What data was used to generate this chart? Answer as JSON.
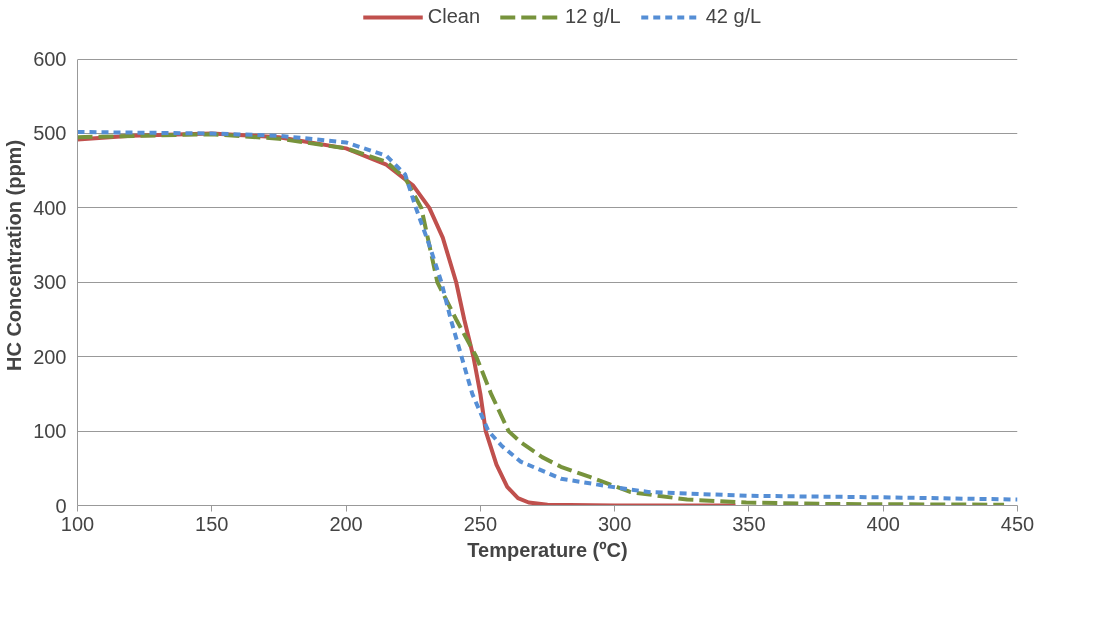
{
  "chart_data": {
    "type": "line",
    "xlabel": "Temperature (ºC)",
    "ylabel": "HC Concentration (ppm)",
    "xlim": [
      100,
      450
    ],
    "xticks": [
      100,
      150,
      200,
      250,
      300,
      350,
      400,
      450
    ],
    "ylim": [
      0,
      600
    ],
    "yticks": [
      0,
      100,
      200,
      300,
      400,
      500,
      600
    ],
    "grid": "y",
    "legend": "top",
    "marker": "none",
    "series": [
      {
        "name": "Clean",
        "color": "#c0504d",
        "line_style": "solid",
        "x": [
          100,
          120,
          150,
          175,
          200,
          215,
          225,
          231,
          236,
          241,
          244,
          247.4,
          250,
          252,
          256,
          260,
          264,
          268,
          275,
          300,
          345
        ],
        "values": [
          492,
          497,
          500,
          495,
          480,
          458,
          430,
          400,
          360,
          300,
          250,
          200,
          150,
          100,
          55,
          25,
          10,
          4,
          1,
          0,
          0
        ]
      },
      {
        "name": "12 g/L",
        "color": "#77933c",
        "line_style": "dashed",
        "x": [
          100,
          150,
          175,
          200,
          215,
          222,
          228,
          234,
          241,
          248.5,
          254,
          260.5,
          265,
          273,
          280,
          291,
          306,
          327,
          349,
          380,
          445
        ],
        "values": [
          495,
          499,
          493,
          480,
          462,
          440,
          400,
          300,
          250,
          200,
          150,
          100,
          85,
          65,
          52,
          38,
          18,
          8,
          4,
          2,
          1
        ]
      },
      {
        "name": "42 g/L",
        "color": "#558ed5",
        "line_style": "dotted",
        "x": [
          100,
          150,
          175,
          200,
          215,
          222,
          226,
          231,
          235.5,
          239,
          243,
          247,
          253,
          258,
          265,
          280,
          299,
          313,
          350,
          400,
          450
        ],
        "values": [
          502,
          500,
          497,
          488,
          470,
          445,
          400,
          350,
          300,
          250,
          200,
          150,
          100,
          80,
          59,
          36,
          25,
          18,
          13,
          11,
          8
        ]
      }
    ]
  }
}
